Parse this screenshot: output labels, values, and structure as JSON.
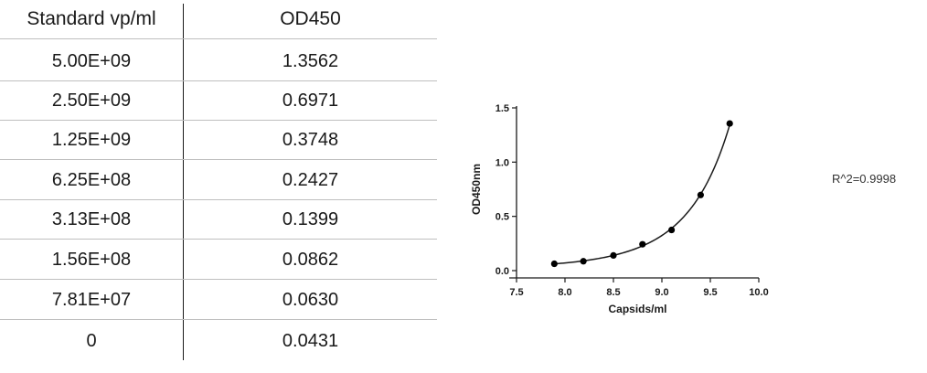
{
  "table": {
    "headers": [
      "Standard vp/ml",
      "OD450"
    ],
    "rows": [
      [
        "5.00E+09",
        "1.3562"
      ],
      [
        "2.50E+09",
        "0.6971"
      ],
      [
        "1.25E+09",
        "0.3748"
      ],
      [
        "6.25E+08",
        "0.2427"
      ],
      [
        "3.13E+08",
        "0.1399"
      ],
      [
        "1.56E+08",
        "0.0862"
      ],
      [
        "7.81E+07",
        "0.0630"
      ],
      [
        "0",
        "0.0431"
      ]
    ]
  },
  "chart_data": {
    "type": "scatter",
    "title": "",
    "xlabel": "Capsids/ml",
    "ylabel": "OD450nm",
    "xlim": [
      7.5,
      10.0
    ],
    "ylim": [
      0.0,
      1.5
    ],
    "x_ticks": [
      "7.5",
      "8.0",
      "8.5",
      "9.0",
      "9.5",
      "10.0"
    ],
    "y_ticks": [
      "0.0",
      "0.5",
      "1.0",
      "1.5"
    ],
    "grid": false,
    "series": [
      {
        "points": [
          {
            "x": 7.89,
            "y": 0.063
          },
          {
            "x": 8.19,
            "y": 0.0862
          },
          {
            "x": 8.5,
            "y": 0.1399
          },
          {
            "x": 8.8,
            "y": 0.2427
          },
          {
            "x": 9.1,
            "y": 0.3748
          },
          {
            "x": 9.4,
            "y": 0.6971
          },
          {
            "x": 9.7,
            "y": 1.3562
          }
        ],
        "color": "#000000",
        "fit_line": true
      }
    ],
    "annotation": "R^2=0.9998"
  }
}
